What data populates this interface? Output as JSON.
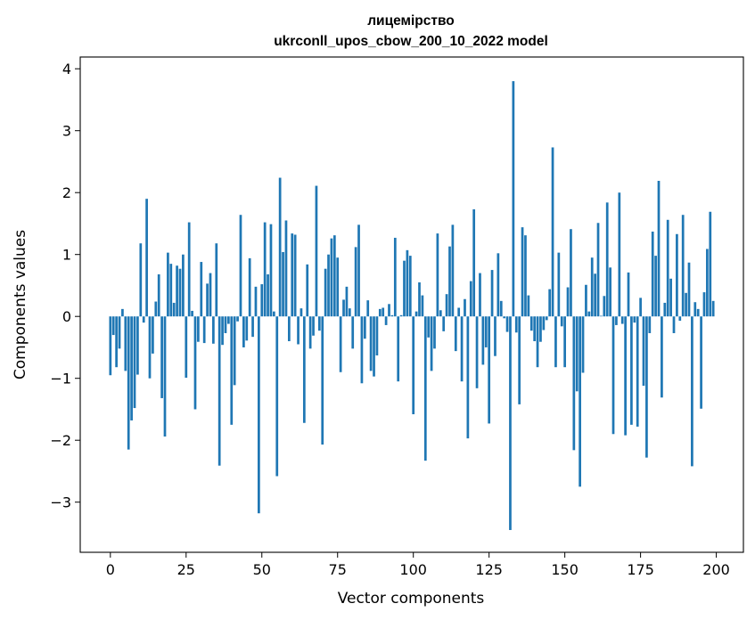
{
  "chart_data": {
    "type": "bar",
    "title": "лицемірство",
    "subtitle": "ukrconll_upos_cbow_200_10_2022 model",
    "xlabel": "Vector components",
    "ylabel": "Components values",
    "xlim": [
      -9.95,
      208.95
    ],
    "ylim": [
      -3.81,
      4.19
    ],
    "xticks": [
      0,
      25,
      50,
      75,
      100,
      125,
      150,
      175,
      200
    ],
    "yticks": [
      -3,
      -2,
      -1,
      0,
      1,
      2,
      3,
      4
    ],
    "ytick_labels": [
      "−3",
      "−2",
      "−1",
      "0",
      "1",
      "2",
      "3",
      "4"
    ],
    "bar_color": "#1f77b4",
    "grid": false,
    "values": [
      -0.95,
      -0.3,
      -0.82,
      -0.52,
      0.12,
      -0.88,
      -2.15,
      -1.68,
      -1.48,
      -0.94,
      1.18,
      -0.1,
      1.9,
      -1.0,
      -0.6,
      0.24,
      0.68,
      -1.32,
      -1.94,
      1.03,
      0.85,
      0.22,
      0.82,
      0.77,
      1.0,
      -0.99,
      1.52,
      0.09,
      -1.5,
      -0.41,
      0.88,
      -0.43,
      0.53,
      0.7,
      -0.44,
      1.18,
      -2.41,
      -0.46,
      -0.27,
      -0.12,
      -1.75,
      -1.11,
      -0.08,
      1.64,
      -0.5,
      -0.39,
      0.94,
      -0.33,
      0.48,
      -3.18,
      0.52,
      1.52,
      0.68,
      1.49,
      0.08,
      -2.58,
      2.24,
      1.04,
      1.55,
      -0.4,
      1.34,
      1.32,
      -0.45,
      0.13,
      -1.72,
      0.84,
      -0.52,
      -0.31,
      2.11,
      -0.23,
      -2.07,
      0.77,
      1.0,
      1.26,
      1.31,
      0.95,
      -0.9,
      0.27,
      0.48,
      0.13,
      -0.52,
      1.12,
      1.48,
      -1.08,
      -0.36,
      0.26,
      -0.88,
      -0.97,
      -0.63,
      0.12,
      0.14,
      -0.14,
      0.2,
      0.02,
      1.27,
      -1.05,
      0.02,
      0.9,
      1.07,
      0.98,
      -1.58,
      0.08,
      0.55,
      0.34,
      -2.33,
      -0.34,
      -0.88,
      -0.52,
      1.34,
      0.1,
      -0.24,
      0.36,
      1.13,
      1.48,
      -0.56,
      0.14,
      -1.05,
      0.28,
      -1.97,
      0.57,
      1.73,
      -1.16,
      0.7,
      -0.78,
      -0.5,
      -1.73,
      0.75,
      -0.64,
      1.02,
      0.25,
      -0.03,
      -0.25,
      -3.45,
      3.8,
      -0.26,
      -1.42,
      1.44,
      1.31,
      0.34,
      -0.23,
      -0.4,
      -0.82,
      -0.41,
      -0.22,
      -0.06,
      0.44,
      2.73,
      -0.82,
      1.03,
      -0.16,
      -0.82,
      0.47,
      1.41,
      -2.16,
      -1.21,
      -2.75,
      -0.91,
      0.51,
      0.08,
      0.95,
      0.69,
      1.51,
      0.01,
      0.33,
      1.84,
      0.79,
      -1.9,
      -0.14,
      2.0,
      -0.12,
      -1.92,
      0.71,
      -1.75,
      -0.1,
      -1.78,
      0.3,
      -1.12,
      -2.28,
      -0.27,
      1.37,
      0.98,
      2.19,
      -1.31,
      0.22,
      1.56,
      0.61,
      -0.27,
      1.33,
      -0.07,
      1.64,
      0.38,
      0.87,
      -2.42,
      0.23,
      0.12,
      -1.49,
      0.39,
      1.09,
      1.69,
      0.25
    ]
  }
}
